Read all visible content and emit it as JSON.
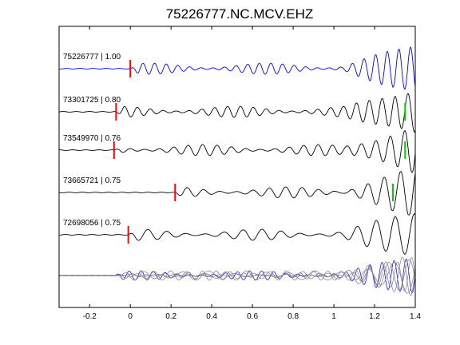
{
  "chart_data": {
    "type": "line",
    "title": "75226777.NC.MCV.EHZ",
    "xlabel": "",
    "ylabel": "",
    "xlim": [
      -0.35,
      1.4
    ],
    "xticks": [
      "-0.2",
      "0",
      "0.2",
      "0.4",
      "0.6",
      "0.8",
      "1",
      "1.2",
      "1.4"
    ],
    "grid": false,
    "traces": [
      {
        "label": "75226777 | 1.00",
        "color": "#0000ff",
        "pick_red": 0.0,
        "pick_green": null
      },
      {
        "label": "73301725 | 0.80",
        "color": "#000000",
        "pick_red": -0.07,
        "pick_green": 1.35
      },
      {
        "label": "73549970 | 0.76",
        "color": "#000000",
        "pick_red": -0.08,
        "pick_green": 1.35
      },
      {
        "label": "73665721 | 0.75",
        "color": "#000000",
        "pick_red": 0.22,
        "pick_green": 1.29
      },
      {
        "label": "72698056 | 0.75",
        "color": "#000000",
        "pick_red": -0.01,
        "pick_green": null
      }
    ],
    "overlay": {
      "colors": [
        "#0000ff",
        "#808080"
      ]
    },
    "pick_colors": {
      "red": "#ff0000",
      "green": "#00cc00"
    }
  }
}
